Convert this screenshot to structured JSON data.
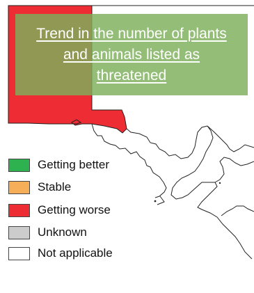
{
  "title": "Trend in the number of plants and animals listed as threatened",
  "colors": {
    "getting_better": "#2eb24f",
    "stable": "#f6ae58",
    "getting_worse": "#ed2c33",
    "unknown": "#cccccc",
    "not_applicable": "#ffffff",
    "title_panel": "#7db05a"
  },
  "map": {
    "regions": [
      {
        "name": "north-western region",
        "status": "Getting worse"
      },
      {
        "name": "remaining regions",
        "status": "Not applicable"
      }
    ]
  },
  "legend": {
    "items": [
      {
        "label": "Getting better",
        "color": "#2eb24f"
      },
      {
        "label": "Stable",
        "color": "#f6ae58"
      },
      {
        "label": "Getting worse",
        "color": "#ed2c33"
      },
      {
        "label": "Unknown",
        "color": "#cccccc"
      },
      {
        "label": "Not applicable",
        "color": "#ffffff"
      }
    ]
  }
}
